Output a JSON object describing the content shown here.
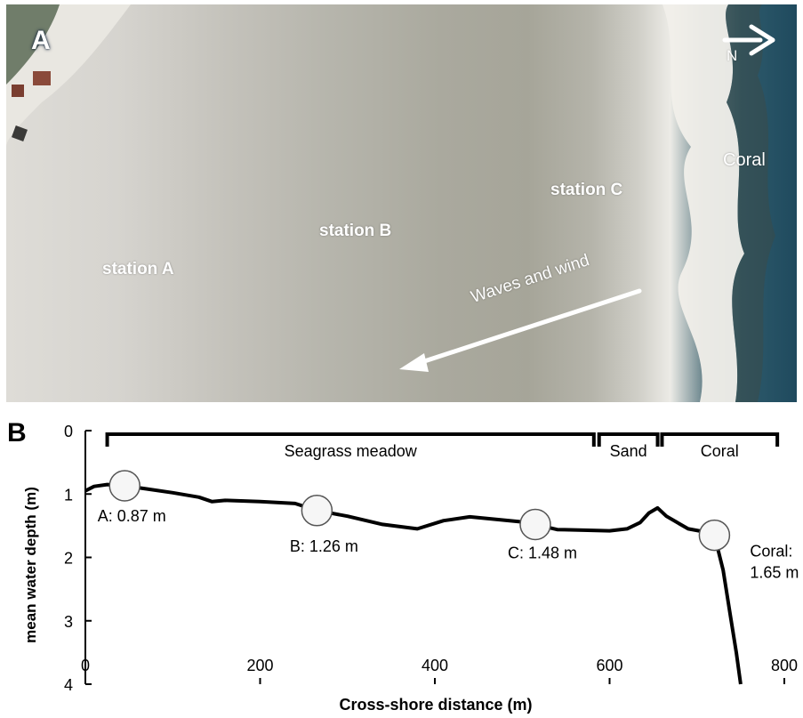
{
  "panel_a": {
    "letter": "A",
    "north_label": "N",
    "labels": {
      "station_a": "station A",
      "station_b": "station B",
      "station_c": "station C",
      "coral": "Coral",
      "waves": "Waves and wind"
    }
  },
  "panel_b": {
    "letter": "B"
  },
  "chart_data": {
    "type": "line",
    "xlabel": "Cross-shore distance (m)",
    "ylabel": "mean water depth  (m)",
    "xlim": [
      0,
      800
    ],
    "ylim": [
      0,
      4
    ],
    "y_inverted": true,
    "xticks": [
      0,
      200,
      400,
      600,
      800
    ],
    "yticks": [
      0,
      1,
      2,
      3,
      4
    ],
    "zones": [
      {
        "label": "Seagrass meadow",
        "x_start": 25,
        "x_end": 582
      },
      {
        "label": "Sand",
        "x_start": 588,
        "x_end": 655
      },
      {
        "label": "Coral",
        "x_start": 660,
        "x_end": 792
      }
    ],
    "stations": [
      {
        "label": "A: 0.87 m",
        "x": 45,
        "depth": 0.87
      },
      {
        "label": "B: 1.26 m",
        "x": 265,
        "depth": 1.26
      },
      {
        "label": "C: 1.48 m",
        "x": 515,
        "depth": 1.48
      },
      {
        "label_line1": "Coral:",
        "label_line2": "1.65 m",
        "x": 720,
        "depth": 1.65
      }
    ],
    "profile": {
      "x": [
        0,
        10,
        25,
        45,
        70,
        100,
        130,
        145,
        160,
        200,
        240,
        265,
        300,
        340,
        380,
        410,
        440,
        470,
        500,
        515,
        540,
        570,
        600,
        620,
        635,
        645,
        655,
        665,
        690,
        710,
        720,
        730,
        738,
        745,
        750
      ],
      "depth": [
        0.95,
        0.88,
        0.85,
        0.87,
        0.92,
        0.98,
        1.05,
        1.12,
        1.1,
        1.12,
        1.15,
        1.26,
        1.35,
        1.48,
        1.55,
        1.42,
        1.36,
        1.4,
        1.44,
        1.48,
        1.56,
        1.57,
        1.58,
        1.55,
        1.45,
        1.3,
        1.22,
        1.35,
        1.55,
        1.6,
        1.65,
        2.2,
        2.9,
        3.5,
        4.0
      ]
    }
  }
}
